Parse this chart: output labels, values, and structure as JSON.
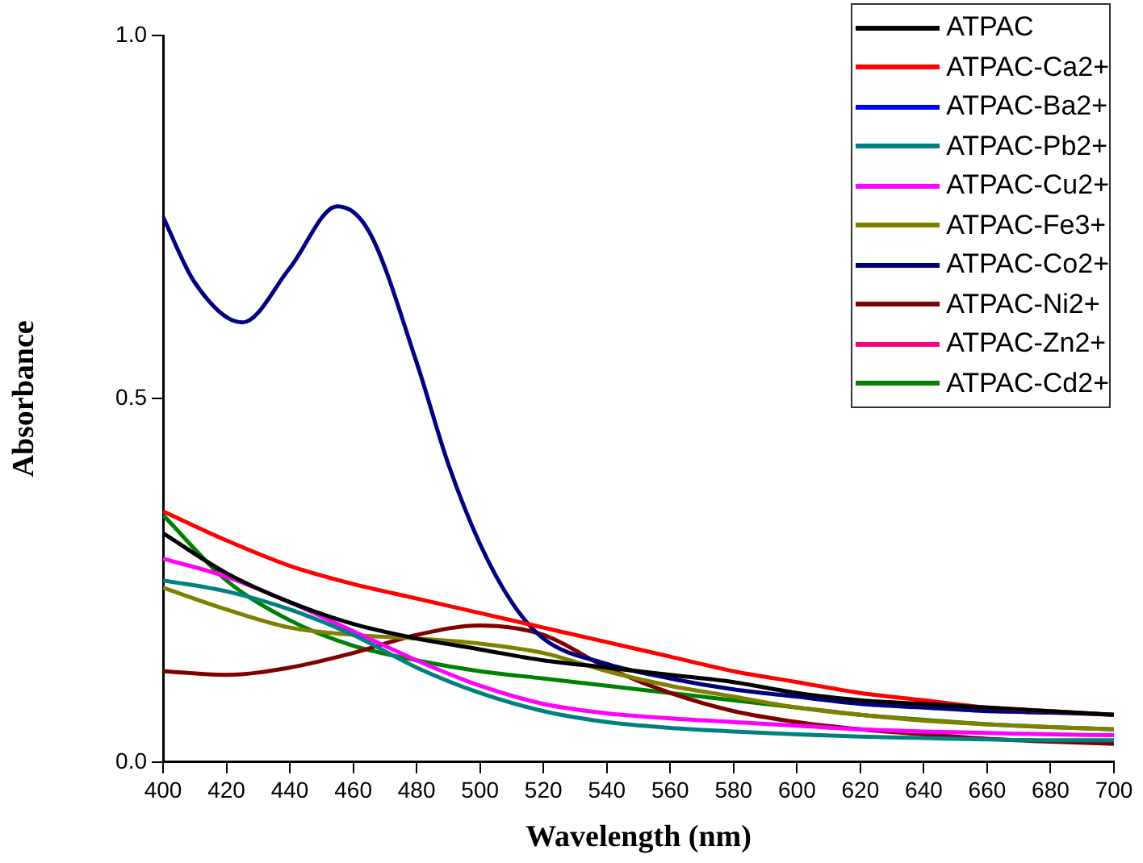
{
  "chart_data": {
    "type": "line",
    "xlabel": "Wavelength (nm)",
    "ylabel": "Absorbance",
    "x": [
      400,
      420,
      440,
      460,
      480,
      500,
      520,
      540,
      560,
      580,
      600,
      620,
      640,
      660,
      680,
      700
    ],
    "xlim": [
      400,
      700
    ],
    "xticks": [
      400,
      420,
      440,
      460,
      480,
      500,
      520,
      540,
      560,
      580,
      600,
      620,
      640,
      660,
      680,
      700
    ],
    "ylim": [
      0,
      1
    ],
    "yticks": [
      {
        "value": 0,
        "label": "0.0"
      },
      {
        "value": 0.5,
        "label": "0.5"
      },
      {
        "value": 1,
        "label": "1.0"
      }
    ],
    "grid": false,
    "legend": "top right",
    "marker": "none",
    "line_style": "solid",
    "series": [
      {
        "name": "ATPAC",
        "color": "#000000",
        "values": [
          0.315,
          0.26,
          0.22,
          0.19,
          0.17,
          0.155,
          0.14,
          0.13,
          0.12,
          0.11,
          0.095,
          0.085,
          0.08,
          0.075,
          0.07,
          0.065
        ]
      },
      {
        "name": "ATPAC-Ca2+",
        "color": "#ff0000",
        "values": [
          0.345,
          0.305,
          0.27,
          0.245,
          0.225,
          0.205,
          0.185,
          0.165,
          0.145,
          0.125,
          0.11,
          0.095,
          0.085,
          0.075,
          0.07,
          0.065
        ]
      },
      {
        "name": "ATPAC-Ba2+",
        "color": "#0000ff",
        "values": [
          null,
          null,
          null,
          null,
          null,
          null,
          null,
          null,
          null,
          null,
          null,
          null,
          null,
          null,
          null,
          null
        ]
      },
      {
        "name": "ATPAC-Pb2+",
        "color": "#008080",
        "values": [
          0.25,
          0.235,
          0.21,
          0.175,
          0.13,
          0.095,
          0.07,
          0.055,
          0.047,
          0.042,
          0.038,
          0.035,
          0.033,
          0.031,
          0.03,
          0.03
        ]
      },
      {
        "name": "ATPAC-Cu2+",
        "color": "#ff00ff",
        "values": [
          0.28,
          0.255,
          0.22,
          0.18,
          0.14,
          0.105,
          0.08,
          0.067,
          0.06,
          0.055,
          0.05,
          0.045,
          0.042,
          0.04,
          0.038,
          0.037
        ]
      },
      {
        "name": "ATPAC-Fe3+",
        "color": "#808000",
        "values": [
          0.24,
          0.21,
          0.185,
          0.175,
          0.17,
          0.163,
          0.15,
          0.125,
          0.105,
          0.09,
          0.075,
          0.065,
          0.057,
          0.052,
          0.048,
          0.045
        ]
      },
      {
        "name": "ATPAC-Co2+",
        "color": "#000080",
        "x": [
          400,
          410,
          425,
          440,
          455,
          465,
          480,
          490,
          500,
          510,
          520,
          540,
          560,
          580,
          600,
          620,
          640,
          660,
          680,
          700
        ],
        "values": [
          0.75,
          0.66,
          0.605,
          0.68,
          0.765,
          0.73,
          0.55,
          0.41,
          0.3,
          0.22,
          0.17,
          0.135,
          0.115,
          0.1,
          0.09,
          0.08,
          0.075,
          0.07,
          0.068,
          0.065
        ]
      },
      {
        "name": "ATPAC-Ni2+",
        "color": "#800000",
        "values": [
          0.125,
          0.12,
          0.13,
          0.15,
          0.175,
          0.188,
          0.175,
          0.13,
          0.095,
          0.07,
          0.055,
          0.045,
          0.038,
          0.032,
          0.028,
          0.025
        ]
      },
      {
        "name": "ATPAC-Zn2+",
        "color": "#ff0080",
        "values": [
          null,
          null,
          null,
          null,
          null,
          null,
          null,
          null,
          null,
          null,
          null,
          null,
          null,
          null,
          null,
          null
        ]
      },
      {
        "name": "ATPAC-Cd2+",
        "color": "#008000",
        "values": [
          0.34,
          0.25,
          0.195,
          0.16,
          0.14,
          0.125,
          0.115,
          0.105,
          0.095,
          0.085,
          0.075,
          0.065,
          0.058,
          0.052,
          0.048,
          0.045
        ]
      }
    ]
  }
}
